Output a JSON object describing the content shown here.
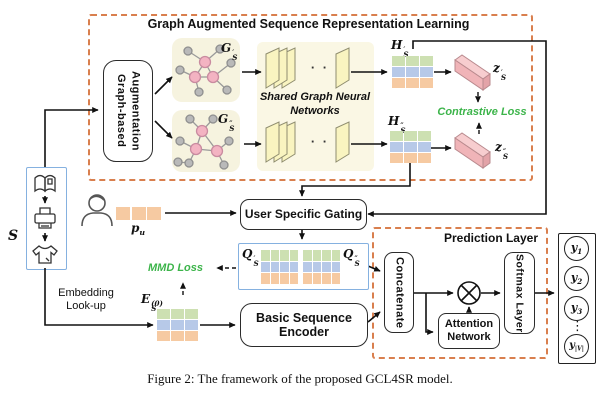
{
  "caption": "Figure 2: The framework of the proposed GCL4SR model.",
  "colors": {
    "dashed_box_orange": "#d97f4e",
    "blue_border": "#85b1e0",
    "grid_green": "#cde0b2",
    "grid_blue": "#b7c9e8",
    "grid_orange": "#f6caa2",
    "bar_pink": "#f0b4b8",
    "loss_green": "#3cb44a",
    "panel_cream": "#f6f3df",
    "slab_yellow": "#f9f4c0",
    "node_pink": "#f3b3c2",
    "node_gray": "#b9b9b9"
  },
  "icons": {
    "sequence_items": [
      "book-icon",
      "printer-icon",
      "tshirt-icon"
    ],
    "user": "user-icon"
  },
  "top_box": {
    "title": "Graph Augmented Sequence Representation Learning",
    "augmentation": {
      "line1": "Graph-based",
      "line2": "Augmentation"
    },
    "gnn_caption": {
      "line1": "Shared Graph Neural",
      "line2": "Networks"
    },
    "stack_dots": "· ·",
    "graph1_label": {
      "base": "G",
      "sup": "′",
      "sub": "S"
    },
    "graph2_label": {
      "base": "G",
      "sup": "″",
      "sub": "S"
    },
    "h1_label": {
      "base": "H",
      "sup": "′",
      "sub": "S"
    },
    "h2_label": {
      "base": "H",
      "sup": "″",
      "sub": "S"
    },
    "z1_label": {
      "base": "z",
      "sup": "′",
      "sub": "S"
    },
    "z2_label": {
      "base": "z",
      "sup": "″",
      "sub": "S"
    },
    "contrastive_loss": "Contrastive Loss"
  },
  "left": {
    "sequence_label": "S",
    "user_vector_label": {
      "base": "p",
      "sub": "u"
    },
    "embedding": {
      "line1": "Embedding",
      "line2": "Look-up"
    },
    "e0_label": {
      "base": "E",
      "sup": "(0)",
      "sub": "S"
    }
  },
  "middle": {
    "gating_label": "User Specific Gating",
    "q1_label": {
      "base": "Q",
      "sup": "′",
      "sub": "S"
    },
    "q2_label": {
      "base": "Q",
      "sup": "″",
      "sub": "S"
    },
    "mmd_loss": "MMD Loss",
    "encoder": {
      "line1": "Basic Sequence",
      "line2": "Encoder"
    }
  },
  "prediction": {
    "title": "Prediction Layer",
    "concatenate": "Concatenate",
    "attention": {
      "line1": "Attention",
      "line2": "Network"
    },
    "softmax": "Softmax Layer",
    "vdots": "⋮",
    "outputs": [
      {
        "base": "y",
        "sub": "1"
      },
      {
        "base": "y",
        "sub": "2"
      },
      {
        "base": "y",
        "sub": "3"
      },
      {
        "base": "y",
        "sub": "|V|"
      }
    ]
  },
  "grids": {
    "h1": {
      "cols": 3,
      "rows": [
        "#cde0b2",
        "#b7c9e8",
        "#f6caa2"
      ]
    },
    "h2": {
      "cols": 3,
      "rows": [
        "#cde0b2",
        "#b7c9e8",
        "#f6caa2"
      ]
    },
    "e0": {
      "cols": 3,
      "rows": [
        "#cde0b2",
        "#b7c9e8",
        "#f6caa2"
      ]
    },
    "q1": {
      "cols": 4,
      "rows": [
        "#cde0b2",
        "#b7c9e8",
        "#f6caa2"
      ]
    },
    "q2": {
      "cols": 4,
      "rows": [
        "#cde0b2",
        "#b7c9e8",
        "#f6caa2"
      ]
    },
    "pu": {
      "cols": 3,
      "rows": [
        "#f6caa2"
      ]
    }
  }
}
